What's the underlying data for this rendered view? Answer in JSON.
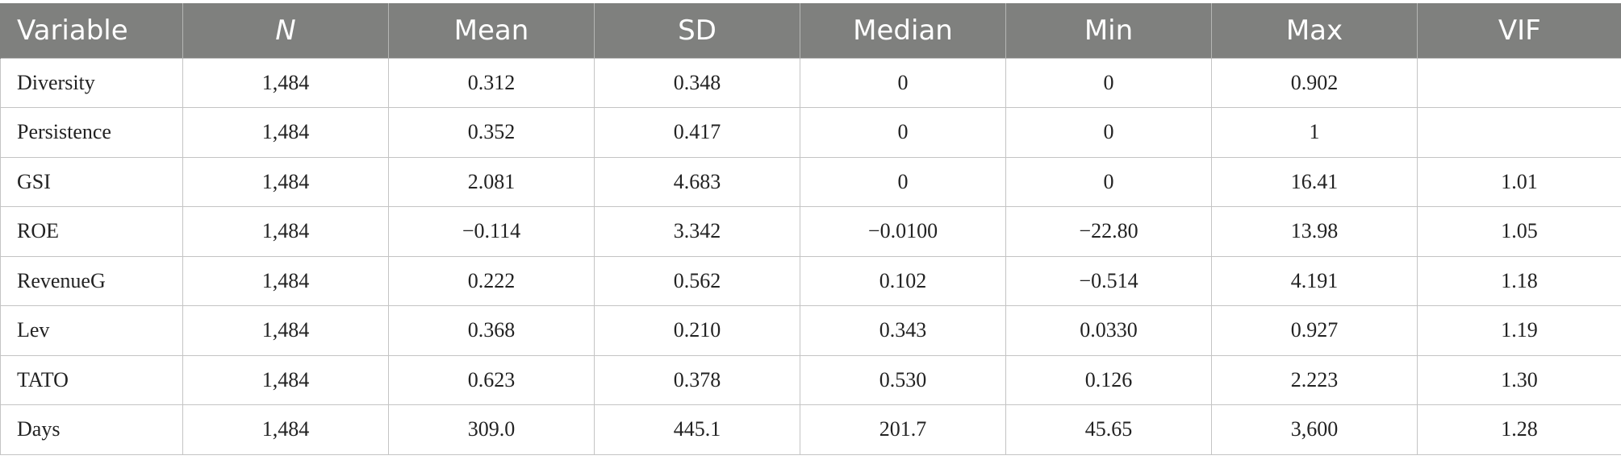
{
  "table": {
    "headers": [
      "Variable",
      "N",
      "Mean",
      "SD",
      "Median",
      "Min",
      "Max",
      "VIF"
    ],
    "rows": [
      [
        "Diversity",
        "1,484",
        "0.312",
        "0.348",
        "0",
        "0",
        "0.902",
        ""
      ],
      [
        "Persistence",
        "1,484",
        "0.352",
        "0.417",
        "0",
        "0",
        "1",
        ""
      ],
      [
        "GSI",
        "1,484",
        "2.081",
        "4.683",
        "0",
        "0",
        "16.41",
        "1.01"
      ],
      [
        "ROE",
        "1,484",
        "−0.114",
        "3.342",
        "−0.0100",
        "−22.80",
        "13.98",
        "1.05"
      ],
      [
        "RevenueG",
        "1,484",
        "0.222",
        "0.562",
        "0.102",
        "−0.514",
        "4.191",
        "1.18"
      ],
      [
        "Lev",
        "1,484",
        "0.368",
        "0.210",
        "0.343",
        "0.0330",
        "0.927",
        "1.19"
      ],
      [
        "TATO",
        "1,484",
        "0.623",
        "0.378",
        "0.530",
        "0.126",
        "2.223",
        "1.30"
      ],
      [
        "Days",
        "1,484",
        "309.0",
        "445.1",
        "201.7",
        "45.65",
        "3,600",
        "1.28"
      ]
    ]
  }
}
